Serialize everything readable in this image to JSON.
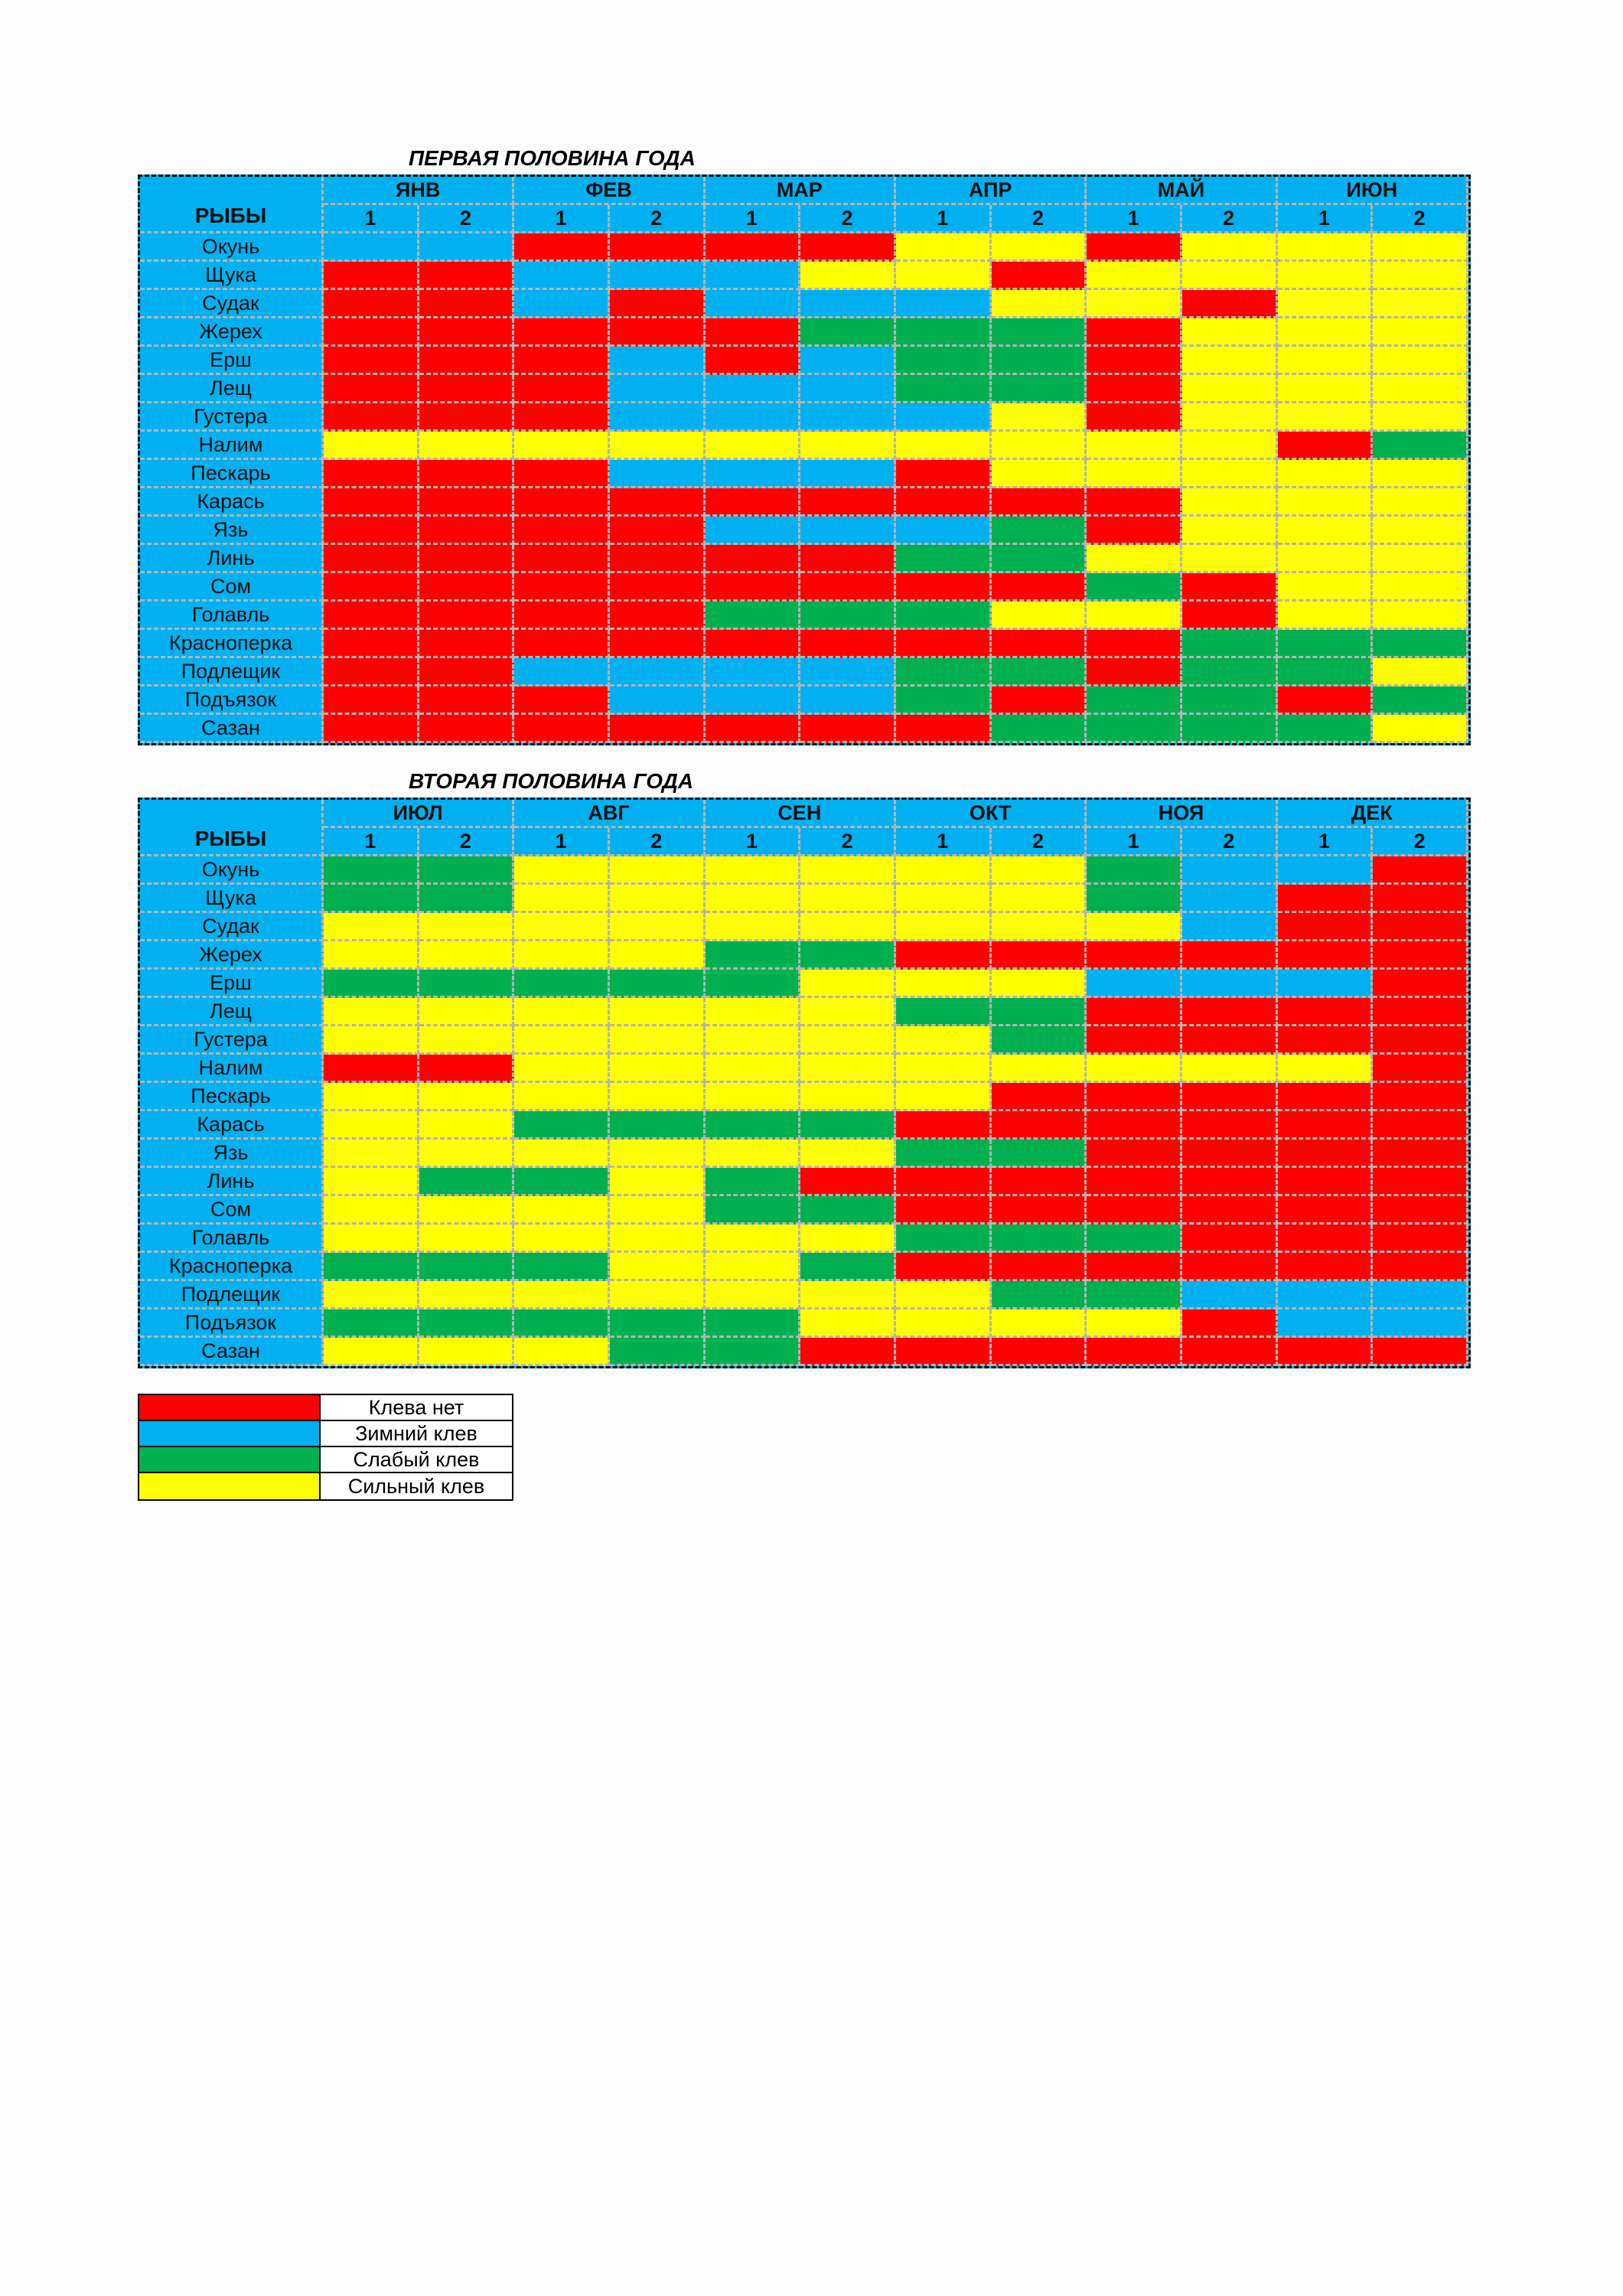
{
  "first_half": {
    "title": "ПЕРВАЯ ПОЛОВИНА ГОДА",
    "months": [
      "ЯНВ",
      "ФЕВ",
      "МАР",
      "АПР",
      "МАЙ",
      "ИЮН"
    ]
  },
  "second_half": {
    "title": "ВТОРАЯ ПОЛОВИНА ГОДА",
    "months": [
      "ИЮЛ",
      "АВГ",
      "СЕН",
      "ОКТ",
      "НОЯ",
      "ДЕК"
    ]
  },
  "fish_header": "РЫБЫ",
  "halves": [
    "1",
    "2"
  ],
  "fish": [
    "Окунь",
    "Щука",
    "Судак",
    "Жерех",
    "Ерш",
    "Лещ",
    "Густера",
    "Налим",
    "Пескарь",
    "Карась",
    "Язь",
    "Линь",
    "Сом",
    "Голавль",
    "Красноперка",
    "Подлещик",
    "Подъязок",
    "Сазан"
  ],
  "colors": {
    "R": "#ff0000",
    "B": "#00b0f0",
    "G": "#00b050",
    "Y": "#ffff00"
  },
  "legend": [
    {
      "key": "R",
      "label": "Клева нет"
    },
    {
      "key": "B",
      "label": "Зимний клев"
    },
    {
      "key": "G",
      "label": "Слабый клев"
    },
    {
      "key": "Y",
      "label": "Сильный клев"
    }
  ],
  "grid1": [
    [
      "B",
      "B",
      "R",
      "R",
      "R",
      "R",
      "Y",
      "Y",
      "R",
      "Y",
      "Y",
      "Y"
    ],
    [
      "R",
      "R",
      "B",
      "B",
      "B",
      "Y",
      "Y",
      "R",
      "Y",
      "Y",
      "Y",
      "Y"
    ],
    [
      "R",
      "R",
      "B",
      "R",
      "B",
      "B",
      "B",
      "Y",
      "Y",
      "R",
      "Y",
      "Y"
    ],
    [
      "R",
      "R",
      "R",
      "R",
      "R",
      "G",
      "G",
      "G",
      "R",
      "Y",
      "Y",
      "Y"
    ],
    [
      "R",
      "R",
      "R",
      "B",
      "R",
      "B",
      "G",
      "G",
      "R",
      "Y",
      "Y",
      "Y"
    ],
    [
      "R",
      "R",
      "R",
      "B",
      "B",
      "B",
      "G",
      "G",
      "R",
      "Y",
      "Y",
      "Y"
    ],
    [
      "R",
      "R",
      "R",
      "B",
      "B",
      "B",
      "B",
      "Y",
      "R",
      "Y",
      "Y",
      "Y"
    ],
    [
      "Y",
      "Y",
      "Y",
      "Y",
      "Y",
      "Y",
      "Y",
      "Y",
      "Y",
      "Y",
      "R",
      "G"
    ],
    [
      "R",
      "R",
      "R",
      "B",
      "B",
      "B",
      "R",
      "Y",
      "Y",
      "Y",
      "Y",
      "Y"
    ],
    [
      "R",
      "R",
      "R",
      "R",
      "R",
      "R",
      "R",
      "R",
      "R",
      "Y",
      "Y",
      "Y"
    ],
    [
      "R",
      "R",
      "R",
      "R",
      "B",
      "B",
      "B",
      "G",
      "R",
      "Y",
      "Y",
      "Y"
    ],
    [
      "R",
      "R",
      "R",
      "R",
      "R",
      "R",
      "G",
      "G",
      "Y",
      "Y",
      "Y",
      "Y"
    ],
    [
      "R",
      "R",
      "R",
      "R",
      "R",
      "R",
      "R",
      "R",
      "G",
      "R",
      "Y",
      "Y"
    ],
    [
      "R",
      "R",
      "R",
      "R",
      "G",
      "G",
      "G",
      "Y",
      "Y",
      "R",
      "Y",
      "Y"
    ],
    [
      "R",
      "R",
      "R",
      "R",
      "R",
      "R",
      "R",
      "R",
      "R",
      "G",
      "G",
      "G"
    ],
    [
      "R",
      "R",
      "B",
      "B",
      "B",
      "B",
      "G",
      "G",
      "R",
      "G",
      "G",
      "Y"
    ],
    [
      "R",
      "R",
      "R",
      "B",
      "B",
      "B",
      "G",
      "R",
      "G",
      "G",
      "R",
      "G"
    ],
    [
      "R",
      "R",
      "R",
      "R",
      "R",
      "R",
      "R",
      "G",
      "G",
      "G",
      "G",
      "Y"
    ]
  ],
  "grid2": [
    [
      "G",
      "G",
      "Y",
      "Y",
      "Y",
      "Y",
      "Y",
      "Y",
      "G",
      "B",
      "B",
      "R"
    ],
    [
      "G",
      "G",
      "Y",
      "Y",
      "Y",
      "Y",
      "Y",
      "Y",
      "G",
      "B",
      "R",
      "R"
    ],
    [
      "Y",
      "Y",
      "Y",
      "Y",
      "Y",
      "Y",
      "Y",
      "Y",
      "Y",
      "B",
      "R",
      "R"
    ],
    [
      "Y",
      "Y",
      "Y",
      "Y",
      "G",
      "G",
      "R",
      "R",
      "R",
      "R",
      "R",
      "R"
    ],
    [
      "G",
      "G",
      "G",
      "G",
      "G",
      "Y",
      "Y",
      "Y",
      "B",
      "B",
      "B",
      "R"
    ],
    [
      "Y",
      "Y",
      "Y",
      "Y",
      "Y",
      "Y",
      "G",
      "G",
      "R",
      "R",
      "R",
      "R"
    ],
    [
      "Y",
      "Y",
      "Y",
      "Y",
      "Y",
      "Y",
      "Y",
      "G",
      "R",
      "R",
      "R",
      "R"
    ],
    [
      "R",
      "R",
      "Y",
      "Y",
      "Y",
      "Y",
      "Y",
      "Y",
      "Y",
      "Y",
      "Y",
      "R"
    ],
    [
      "Y",
      "Y",
      "Y",
      "Y",
      "Y",
      "Y",
      "Y",
      "R",
      "R",
      "R",
      "R",
      "R"
    ],
    [
      "Y",
      "Y",
      "G",
      "G",
      "G",
      "G",
      "R",
      "R",
      "R",
      "R",
      "R",
      "R"
    ],
    [
      "Y",
      "Y",
      "Y",
      "Y",
      "Y",
      "Y",
      "G",
      "G",
      "R",
      "R",
      "R",
      "R"
    ],
    [
      "Y",
      "G",
      "G",
      "Y",
      "G",
      "R",
      "R",
      "R",
      "R",
      "R",
      "R",
      "R"
    ],
    [
      "Y",
      "Y",
      "Y",
      "Y",
      "G",
      "G",
      "R",
      "R",
      "R",
      "R",
      "R",
      "R"
    ],
    [
      "Y",
      "Y",
      "Y",
      "Y",
      "Y",
      "Y",
      "G",
      "G",
      "G",
      "R",
      "R",
      "R"
    ],
    [
      "G",
      "G",
      "G",
      "Y",
      "Y",
      "G",
      "R",
      "R",
      "R",
      "R",
      "R",
      "R"
    ],
    [
      "Y",
      "Y",
      "Y",
      "Y",
      "Y",
      "Y",
      "Y",
      "G",
      "G",
      "B",
      "B",
      "B"
    ],
    [
      "G",
      "G",
      "G",
      "G",
      "G",
      "Y",
      "Y",
      "Y",
      "Y",
      "R",
      "B",
      "B"
    ],
    [
      "Y",
      "Y",
      "Y",
      "G",
      "G",
      "R",
      "R",
      "R",
      "R",
      "R",
      "R",
      "R"
    ]
  ]
}
